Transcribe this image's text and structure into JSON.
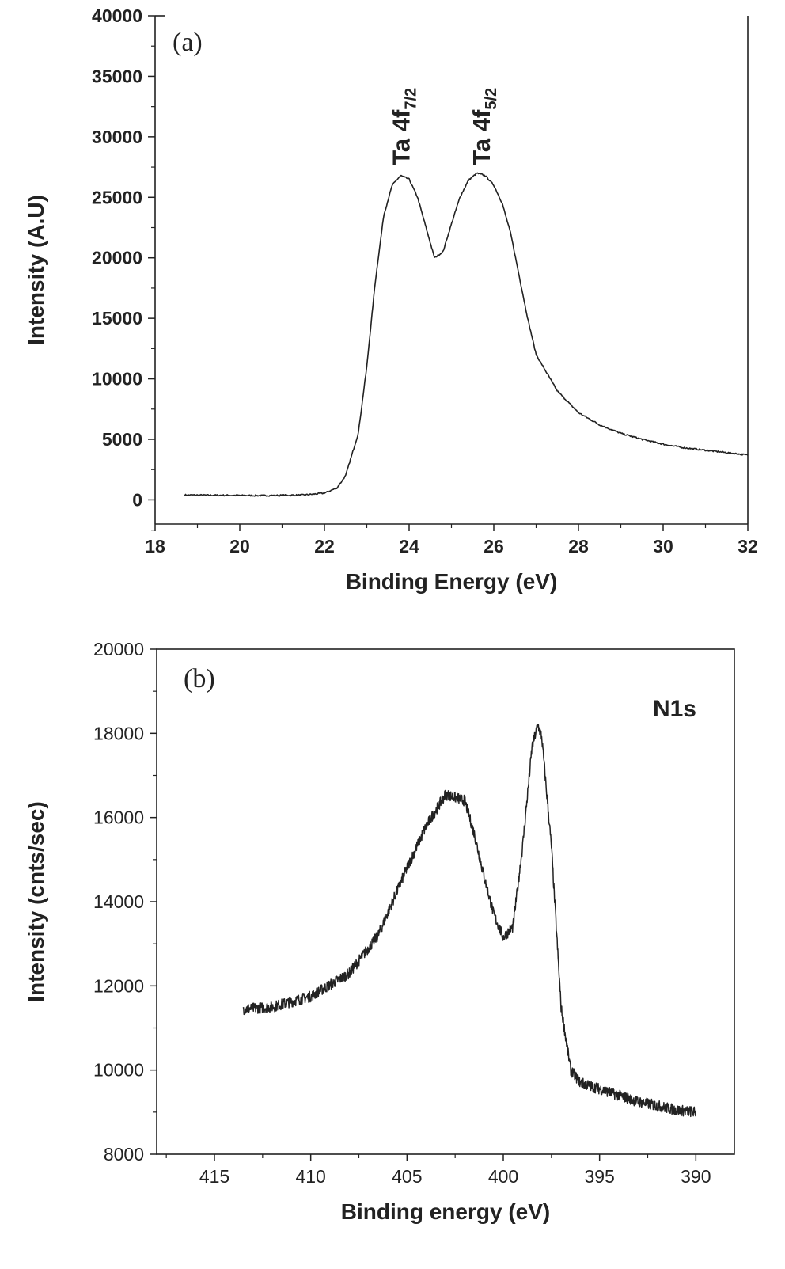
{
  "chart_data": [
    {
      "type": "line",
      "panel_label": "(a)",
      "xlabel": "Binding Energy (eV)",
      "ylabel": "Intensity (A.U)",
      "xlim": [
        18,
        32
      ],
      "ylim": [
        -2000,
        40000
      ],
      "xticks": [
        18,
        20,
        22,
        24,
        26,
        28,
        30,
        32
      ],
      "yticks": [
        0,
        5000,
        10000,
        15000,
        20000,
        25000,
        30000,
        35000,
        40000
      ],
      "annotations": [
        {
          "main": "Ta 4f",
          "sub": "7/2",
          "x": 23.8,
          "y": 27000
        },
        {
          "main": "Ta 4f",
          "sub": "5/2",
          "x": 25.7,
          "y": 27000
        }
      ],
      "series": [
        {
          "x": [
            18.7,
            19.5,
            20.5,
            21.5,
            22.0,
            22.3,
            22.5,
            22.8,
            23.0,
            23.2,
            23.4,
            23.6,
            23.8,
            24.0,
            24.2,
            24.4,
            24.6,
            24.8,
            25.0,
            25.2,
            25.4,
            25.6,
            25.8,
            26.0,
            26.2,
            26.4,
            26.6,
            26.8,
            27.0,
            27.5,
            28.0,
            28.5,
            29.0,
            29.5,
            30.0,
            30.5,
            31.0,
            31.5,
            32.0
          ],
          "y": [
            400,
            380,
            350,
            400,
            550,
            1000,
            2000,
            5500,
            11000,
            18000,
            23500,
            26000,
            26800,
            26500,
            25000,
            22500,
            20000,
            20500,
            22800,
            25000,
            26400,
            27000,
            26800,
            26000,
            24500,
            22000,
            18500,
            15000,
            12000,
            9000,
            7200,
            6200,
            5500,
            5000,
            4600,
            4300,
            4100,
            3900,
            3700
          ]
        }
      ]
    },
    {
      "type": "line",
      "panel_label": "(b)",
      "corner_label": "N1s",
      "xlabel": "Binding energy (eV)",
      "ylabel": "Intensity (cnts/sec)",
      "xlim": [
        418,
        388
      ],
      "ylim": [
        8000,
        20000
      ],
      "xticks": [
        415,
        410,
        405,
        400,
        395,
        390
      ],
      "yticks": [
        8000,
        10000,
        12000,
        14000,
        16000,
        18000,
        20000
      ],
      "series": [
        {
          "x": [
            413.5,
            412,
            410,
            408,
            406.5,
            405,
            404,
            403,
            402,
            401.5,
            401,
            400.5,
            400,
            399.5,
            399,
            398.5,
            398.2,
            398,
            397.5,
            397,
            396.5,
            396,
            395,
            394,
            393,
            392,
            391,
            390
          ],
          "y": [
            11450,
            11500,
            11750,
            12300,
            13200,
            14800,
            15800,
            16550,
            16400,
            15600,
            14600,
            13700,
            13150,
            13400,
            15300,
            17700,
            18200,
            17900,
            15300,
            11500,
            10000,
            9700,
            9550,
            9400,
            9250,
            9150,
            9050,
            9000
          ]
        }
      ]
    }
  ]
}
